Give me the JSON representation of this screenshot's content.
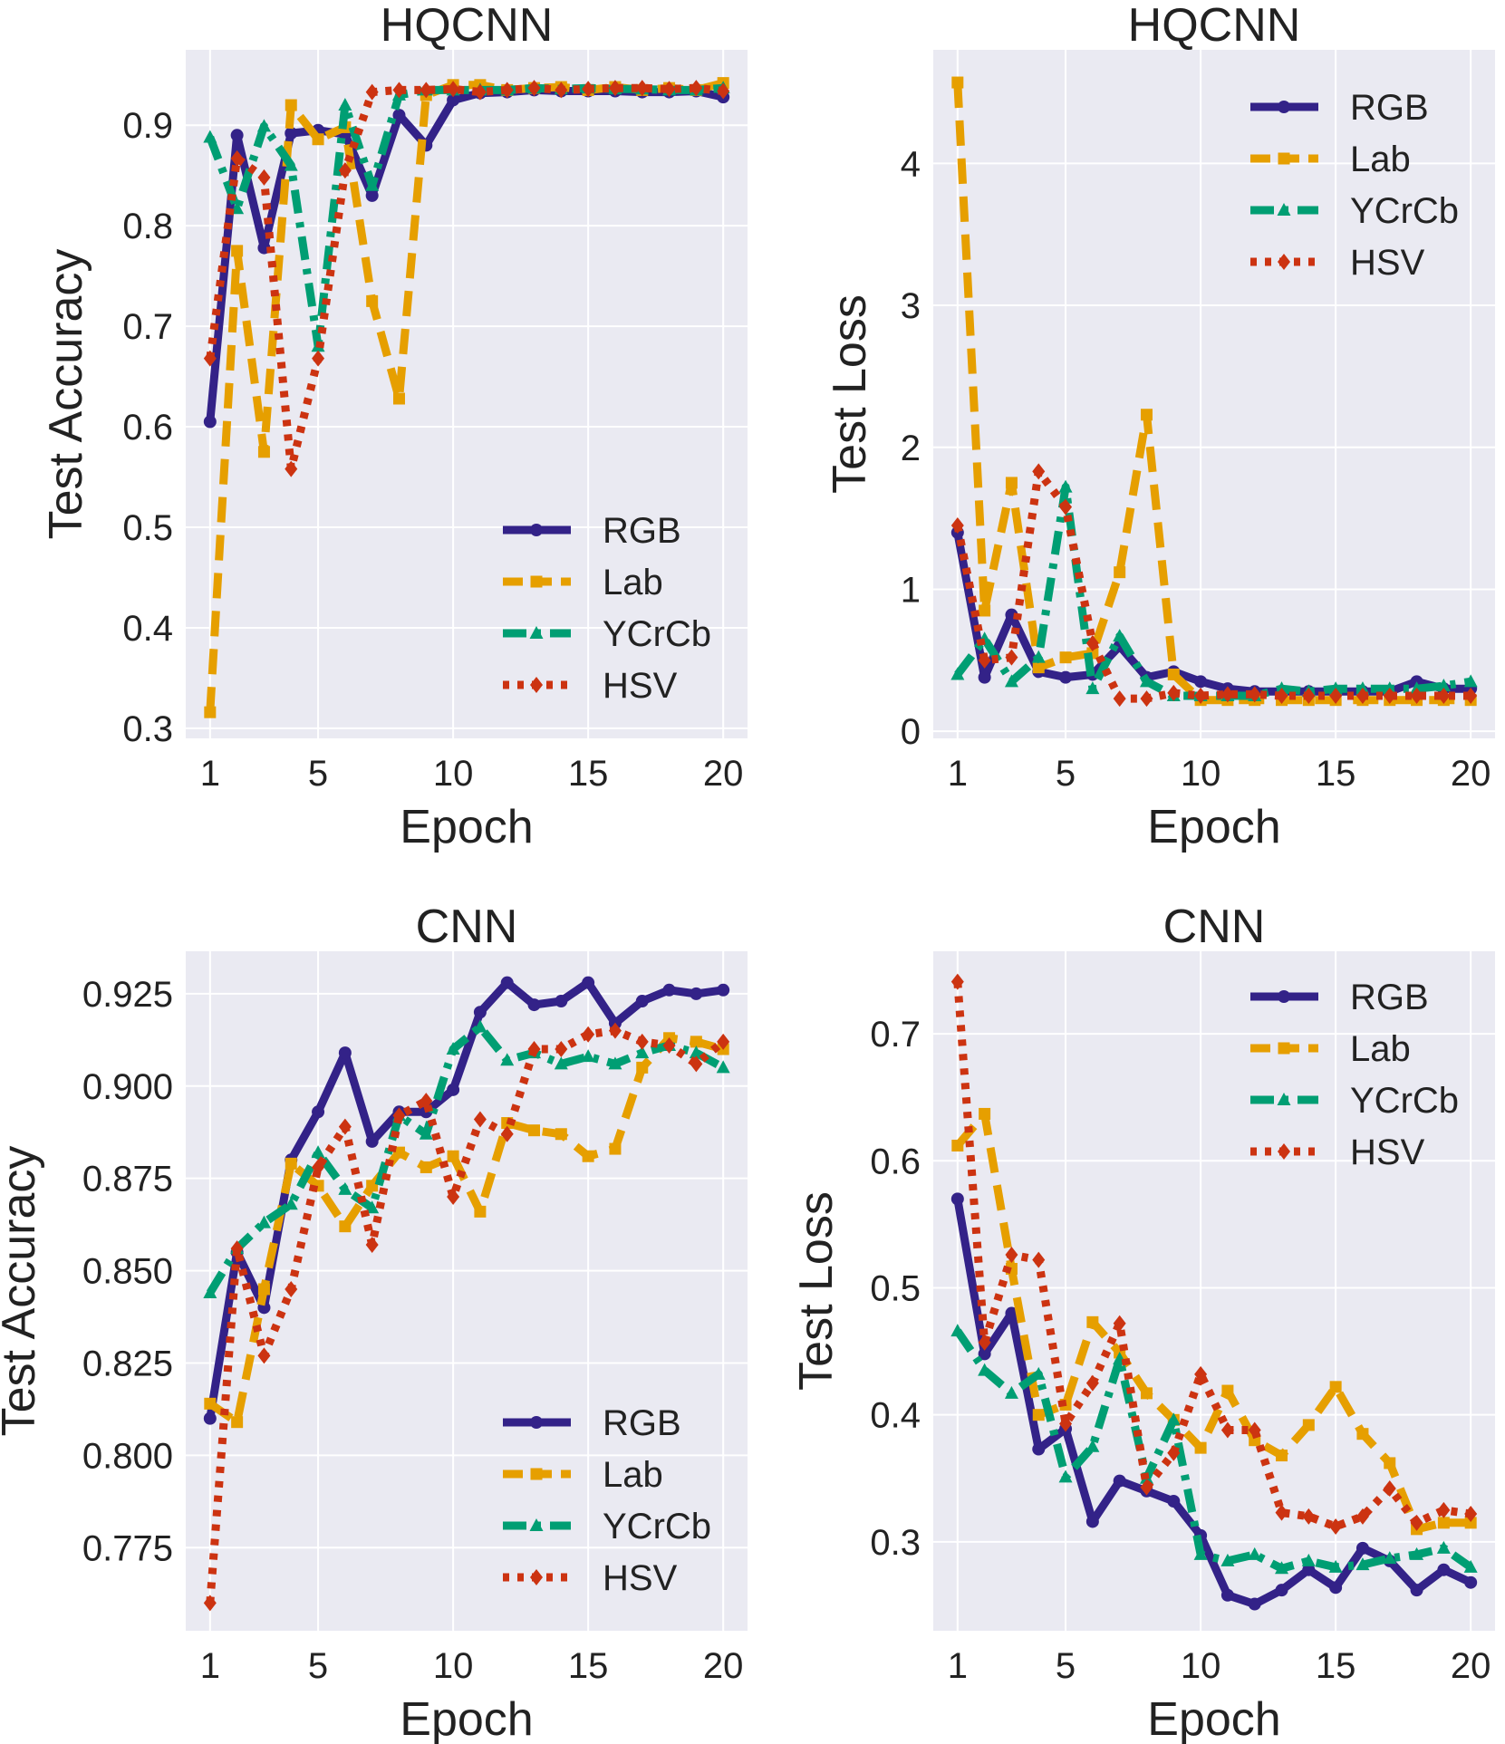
{
  "chart_data": [
    {
      "type": "line",
      "title": "HQCNN",
      "xlabel": "Epoch",
      "ylabel": "Test Accuracy",
      "x": [
        1,
        2,
        3,
        4,
        5,
        6,
        7,
        8,
        9,
        10,
        11,
        12,
        13,
        14,
        15,
        16,
        17,
        18,
        19,
        20
      ],
      "xticks": [
        1,
        5,
        10,
        15,
        20
      ],
      "xtick_labels": [
        "1",
        "5",
        "10",
        "15",
        "20"
      ],
      "yticks": [
        0.3,
        0.4,
        0.5,
        0.6,
        0.7,
        0.8,
        0.9
      ],
      "ytick_labels": [
        "0.3",
        "0.4",
        "0.5",
        "0.6",
        "0.7",
        "0.8",
        "0.9"
      ],
      "ylim": [
        0.29,
        0.975
      ],
      "legend_position": "lower-right",
      "series": [
        {
          "name": "RGB",
          "values": [
            0.605,
            0.89,
            0.778,
            0.892,
            0.895,
            0.891,
            0.83,
            0.91,
            0.88,
            0.925,
            0.932,
            0.933,
            0.935,
            0.934,
            0.934,
            0.934,
            0.933,
            0.933,
            0.934,
            0.928
          ]
        },
        {
          "name": "Lab",
          "values": [
            0.316,
            0.775,
            0.575,
            0.92,
            0.886,
            0.898,
            0.725,
            0.628,
            0.93,
            0.94,
            0.94,
            0.935,
            0.937,
            0.938,
            0.935,
            0.938,
            0.935,
            0.937,
            0.935,
            0.942
          ]
        },
        {
          "name": "YCrCb",
          "values": [
            0.888,
            0.817,
            0.899,
            0.86,
            0.68,
            0.92,
            0.84,
            0.93,
            0.935,
            0.935,
            0.935,
            0.935,
            0.937,
            0.936,
            0.937,
            0.936,
            0.936,
            0.935,
            0.935,
            0.937
          ]
        },
        {
          "name": "HSV",
          "values": [
            0.668,
            0.867,
            0.848,
            0.558,
            0.668,
            0.855,
            0.933,
            0.935,
            0.935,
            0.936,
            0.933,
            0.935,
            0.937,
            0.935,
            0.936,
            0.937,
            0.937,
            0.936,
            0.937,
            0.934
          ]
        }
      ]
    },
    {
      "type": "line",
      "title": "HQCNN",
      "xlabel": "Epoch",
      "ylabel": "Test Loss",
      "x": [
        1,
        2,
        3,
        4,
        5,
        6,
        7,
        8,
        9,
        10,
        11,
        12,
        13,
        14,
        15,
        16,
        17,
        18,
        19,
        20
      ],
      "xticks": [
        1,
        5,
        10,
        15,
        20
      ],
      "xtick_labels": [
        "1",
        "5",
        "10",
        "15",
        "20"
      ],
      "yticks": [
        0,
        1,
        2,
        3,
        4
      ],
      "ytick_labels": [
        "0",
        "1",
        "2",
        "3",
        "4"
      ],
      "ylim": [
        -0.05,
        4.8
      ],
      "legend_position": "upper-right",
      "series": [
        {
          "name": "RGB",
          "values": [
            1.4,
            0.38,
            0.82,
            0.42,
            0.38,
            0.4,
            0.6,
            0.38,
            0.42,
            0.35,
            0.3,
            0.28,
            0.28,
            0.28,
            0.28,
            0.28,
            0.28,
            0.35,
            0.3,
            0.3
          ]
        },
        {
          "name": "Lab",
          "values": [
            4.57,
            0.85,
            1.75,
            0.45,
            0.52,
            0.55,
            1.12,
            2.23,
            0.4,
            0.22,
            0.22,
            0.22,
            0.22,
            0.22,
            0.22,
            0.22,
            0.22,
            0.22,
            0.22,
            0.22
          ]
        },
        {
          "name": "YCrCb",
          "values": [
            0.4,
            0.65,
            0.35,
            0.52,
            1.72,
            0.3,
            0.67,
            0.35,
            0.25,
            0.25,
            0.25,
            0.25,
            0.3,
            0.28,
            0.3,
            0.3,
            0.3,
            0.3,
            0.32,
            0.35
          ]
        },
        {
          "name": "HSV",
          "values": [
            1.45,
            0.5,
            0.52,
            1.83,
            1.58,
            0.62,
            0.23,
            0.23,
            0.27,
            0.25,
            0.26,
            0.26,
            0.25,
            0.25,
            0.25,
            0.25,
            0.25,
            0.25,
            0.25,
            0.25
          ]
        }
      ]
    },
    {
      "type": "line",
      "title": "CNN",
      "xlabel": "Epoch",
      "ylabel": "Test Accuracy",
      "x": [
        1,
        2,
        3,
        4,
        5,
        6,
        7,
        8,
        9,
        10,
        11,
        12,
        13,
        14,
        15,
        16,
        17,
        18,
        19,
        20
      ],
      "xticks": [
        1,
        5,
        10,
        15,
        20
      ],
      "xtick_labels": [
        "1",
        "5",
        "10",
        "15",
        "20"
      ],
      "yticks": [
        0.775,
        0.8,
        0.825,
        0.85,
        0.875,
        0.9,
        0.925
      ],
      "ytick_labels": [
        "0.775",
        "0.800",
        "0.825",
        "0.850",
        "0.875",
        "0.900",
        "0.925"
      ],
      "ylim": [
        0.7525,
        0.9365
      ],
      "legend_position": "lower-right",
      "series": [
        {
          "name": "RGB",
          "values": [
            0.81,
            0.855,
            0.84,
            0.88,
            0.893,
            0.909,
            0.885,
            0.893,
            0.893,
            0.899,
            0.92,
            0.928,
            0.922,
            0.923,
            0.928,
            0.917,
            0.923,
            0.926,
            0.925,
            0.926
          ]
        },
        {
          "name": "Lab",
          "values": [
            0.814,
            0.809,
            0.845,
            0.879,
            0.873,
            0.862,
            0.873,
            0.882,
            0.878,
            0.881,
            0.866,
            0.89,
            0.888,
            0.887,
            0.881,
            0.883,
            0.905,
            0.913,
            0.912,
            0.91
          ]
        },
        {
          "name": "YCrCb",
          "values": [
            0.844,
            0.856,
            0.863,
            0.868,
            0.882,
            0.872,
            0.867,
            0.892,
            0.887,
            0.91,
            0.916,
            0.907,
            0.909,
            0.906,
            0.908,
            0.906,
            0.909,
            0.911,
            0.909,
            0.905
          ]
        },
        {
          "name": "HSV",
          "values": [
            0.76,
            0.856,
            0.827,
            0.845,
            0.878,
            0.889,
            0.857,
            0.892,
            0.896,
            0.87,
            0.891,
            0.887,
            0.91,
            0.91,
            0.914,
            0.915,
            0.912,
            0.911,
            0.906,
            0.912
          ]
        }
      ]
    },
    {
      "type": "line",
      "title": "CNN",
      "xlabel": "Epoch",
      "ylabel": "Test Loss",
      "x": [
        1,
        2,
        3,
        4,
        5,
        6,
        7,
        8,
        9,
        10,
        11,
        12,
        13,
        14,
        15,
        16,
        17,
        18,
        19,
        20
      ],
      "xticks": [
        1,
        5,
        10,
        15,
        20
      ],
      "xtick_labels": [
        "1",
        "5",
        "10",
        "15",
        "20"
      ],
      "yticks": [
        0.3,
        0.4,
        0.5,
        0.6,
        0.7
      ],
      "ytick_labels": [
        "0.3",
        "0.4",
        "0.5",
        "0.6",
        "0.7"
      ],
      "ylim": [
        0.23,
        0.765
      ],
      "legend_position": "upper-right",
      "series": [
        {
          "name": "RGB",
          "values": [
            0.57,
            0.448,
            0.48,
            0.373,
            0.389,
            0.316,
            0.348,
            0.34,
            0.332,
            0.305,
            0.258,
            0.251,
            0.262,
            0.278,
            0.264,
            0.295,
            0.285,
            0.262,
            0.278,
            0.268
          ]
        },
        {
          "name": "Lab",
          "values": [
            0.612,
            0.637,
            0.515,
            0.4,
            0.408,
            0.473,
            0.449,
            0.417,
            0.396,
            0.374,
            0.419,
            0.38,
            0.368,
            0.392,
            0.422,
            0.385,
            0.362,
            0.31,
            0.315,
            0.315
          ]
        },
        {
          "name": "YCrCb",
          "values": [
            0.466,
            0.435,
            0.417,
            0.432,
            0.351,
            0.375,
            0.444,
            0.35,
            0.396,
            0.29,
            0.285,
            0.29,
            0.279,
            0.285,
            0.28,
            0.282,
            0.287,
            0.29,
            0.295,
            0.28
          ]
        },
        {
          "name": "HSV",
          "values": [
            0.741,
            0.457,
            0.526,
            0.522,
            0.393,
            0.425,
            0.472,
            0.343,
            0.37,
            0.432,
            0.388,
            0.388,
            0.323,
            0.32,
            0.312,
            0.32,
            0.342,
            0.315,
            0.325,
            0.322
          ]
        }
      ]
    }
  ],
  "colors": {
    "RGB": "#332288",
    "Lab": "#E69F00",
    "YCrCb": "#009E73",
    "HSV": "#CC3311",
    "panel_bg": "#EAEAF2",
    "grid": "#FFFFFF"
  },
  "markers": {
    "RGB": "circle",
    "Lab": "square",
    "YCrCb": "triangle",
    "HSV": "diamond"
  }
}
